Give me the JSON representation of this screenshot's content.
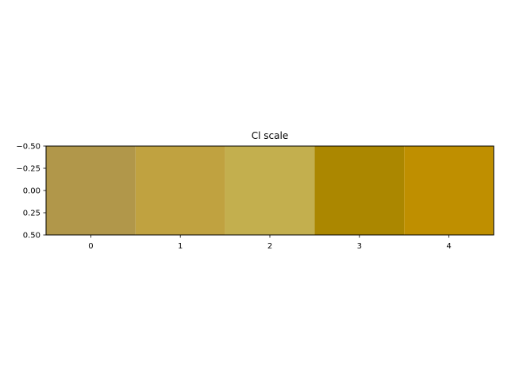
{
  "chart_data": {
    "type": "heatmap",
    "title": "Cl scale",
    "xlabel": "",
    "ylabel": "",
    "categories": [
      "0",
      "1",
      "2",
      "3",
      "4"
    ],
    "colors": [
      "#b1974a",
      "#c0a240",
      "#c3af4e",
      "#ab8700",
      "#bf8f00"
    ],
    "x_ticks": [
      "0",
      "1",
      "2",
      "3",
      "4"
    ],
    "y_ticks": [
      "−0.50",
      "−0.25",
      "0.00",
      "0.25",
      "0.50"
    ],
    "xlim": [
      -0.5,
      4.5
    ],
    "ylim": [
      -0.5,
      0.5
    ],
    "y_inverted": true,
    "grid": false
  }
}
